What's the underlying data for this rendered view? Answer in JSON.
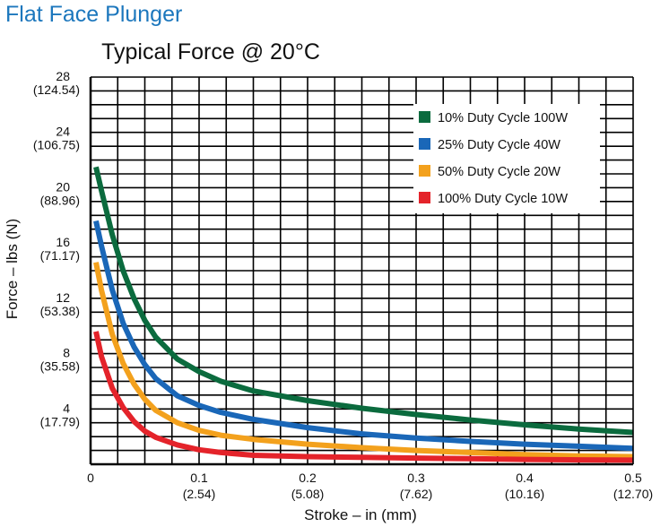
{
  "page": {
    "title": "Flat Face Plunger"
  },
  "chart_data": {
    "type": "line",
    "title": "Typical Force @ 20°C",
    "xlabel": "Stroke – in (mm)",
    "ylabel": "Force – lbs (N)",
    "xlim": [
      0,
      0.5
    ],
    "ylim": [
      0,
      28
    ],
    "grid": true,
    "legend_position": "top-right",
    "x_ticks": [
      {
        "value": 0,
        "label": "0",
        "sublabel": ""
      },
      {
        "value": 0.1,
        "label": "0.1",
        "sublabel": "(2.54)"
      },
      {
        "value": 0.2,
        "label": "0.2",
        "sublabel": "(5.08)"
      },
      {
        "value": 0.3,
        "label": "0.3",
        "sublabel": "(7.62)"
      },
      {
        "value": 0.4,
        "label": "0.4",
        "sublabel": "(10.16)"
      },
      {
        "value": 0.5,
        "label": "0.5",
        "sublabel": "(12.70)"
      }
    ],
    "y_ticks": [
      {
        "value": 4,
        "label": "4",
        "sublabel": "(17.79)"
      },
      {
        "value": 8,
        "label": "8",
        "sublabel": "(35.58)"
      },
      {
        "value": 12,
        "label": "12",
        "sublabel": "(53.38)"
      },
      {
        "value": 16,
        "label": "16",
        "sublabel": "(71.17)"
      },
      {
        "value": 20,
        "label": "20",
        "sublabel": "(88.96)"
      },
      {
        "value": 24,
        "label": "24",
        "sublabel": "(106.75)"
      },
      {
        "value": 28,
        "label": "28",
        "sublabel": "(124.54)"
      }
    ],
    "series": [
      {
        "name": "10% Duty Cycle 100W",
        "color": "#0b6b3e",
        "x": [
          0.005,
          0.01,
          0.02,
          0.03,
          0.04,
          0.05,
          0.06,
          0.08,
          0.1,
          0.12,
          0.15,
          0.2,
          0.25,
          0.3,
          0.35,
          0.4,
          0.45,
          0.5
        ],
        "y": [
          21.5,
          19.8,
          16.6,
          14.0,
          12.0,
          10.4,
          9.2,
          7.6,
          6.7,
          6.0,
          5.3,
          4.6,
          4.05,
          3.6,
          3.2,
          2.85,
          2.55,
          2.3
        ]
      },
      {
        "name": "25% Duty Cycle 40W",
        "color": "#1a67b8",
        "x": [
          0.005,
          0.01,
          0.02,
          0.03,
          0.04,
          0.05,
          0.06,
          0.08,
          0.1,
          0.12,
          0.15,
          0.2,
          0.25,
          0.3,
          0.35,
          0.4,
          0.45,
          0.5
        ],
        "y": [
          17.6,
          15.8,
          12.6,
          10.2,
          8.5,
          7.2,
          6.2,
          4.95,
          4.25,
          3.75,
          3.25,
          2.65,
          2.2,
          1.9,
          1.65,
          1.45,
          1.3,
          1.15
        ]
      },
      {
        "name": "50% Duty Cycle 20W",
        "color": "#f3a11d",
        "x": [
          0.005,
          0.01,
          0.02,
          0.03,
          0.04,
          0.05,
          0.06,
          0.08,
          0.1,
          0.12,
          0.15,
          0.2,
          0.25,
          0.3,
          0.35,
          0.4,
          0.45,
          0.5
        ],
        "y": [
          14.6,
          12.6,
          9.4,
          7.3,
          5.8,
          4.7,
          3.9,
          3.0,
          2.45,
          2.1,
          1.8,
          1.45,
          1.2,
          1.0,
          0.85,
          0.7,
          0.6,
          0.55
        ]
      },
      {
        "name": "100% Duty Cycle 10W",
        "color": "#e4232a",
        "x": [
          0.005,
          0.01,
          0.02,
          0.03,
          0.04,
          0.05,
          0.06,
          0.08,
          0.1,
          0.12,
          0.15,
          0.2,
          0.25,
          0.3,
          0.35,
          0.4,
          0.45,
          0.5
        ],
        "y": [
          9.6,
          7.8,
          5.5,
          4.1,
          3.1,
          2.4,
          1.95,
          1.4,
          1.05,
          0.85,
          0.65,
          0.55,
          0.5,
          0.45,
          0.4,
          0.35,
          0.32,
          0.3
        ]
      }
    ]
  }
}
